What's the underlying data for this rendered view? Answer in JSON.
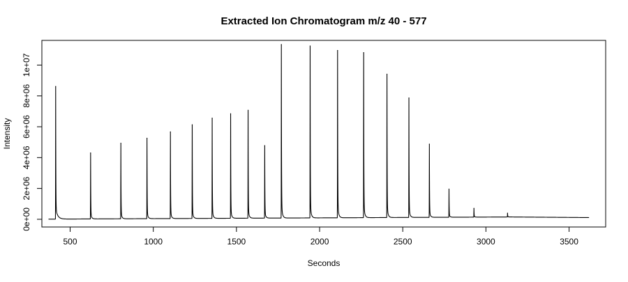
{
  "chart_data": {
    "type": "line",
    "title": "Extracted Ion Chromatogram  m/z  40 - 577",
    "xlabel": "Seconds",
    "ylabel": "Intensity",
    "xlim": [
      330,
      3720
    ],
    "ylim": [
      -500000,
      11600000
    ],
    "x_ticks": [
      {
        "value": 500,
        "label": "500"
      },
      {
        "value": 1000,
        "label": "1000"
      },
      {
        "value": 1500,
        "label": "1500"
      },
      {
        "value": 2000,
        "label": "2000"
      },
      {
        "value": 2500,
        "label": "2500"
      },
      {
        "value": 3000,
        "label": "3000"
      },
      {
        "value": 3500,
        "label": "3500"
      }
    ],
    "y_ticks": [
      {
        "value": 0,
        "label": "0e+00"
      },
      {
        "value": 2000000,
        "label": "2e+06"
      },
      {
        "value": 4000000,
        "label": "4e+06"
      },
      {
        "value": 6000000,
        "label": "6e+06"
      },
      {
        "value": 8000000,
        "label": "8e+06"
      },
      {
        "value": 10000000,
        "label": "1e+07"
      }
    ],
    "grid": false,
    "line_color": "#000000",
    "series": [
      {
        "baseline": [
          [
            370,
            10000
          ],
          [
            3150,
            150000
          ],
          [
            3620,
            110000
          ]
        ],
        "peaks": [
          {
            "x": 413,
            "y": 8600000
          },
          {
            "x": 623,
            "y": 4280000
          },
          {
            "x": 805,
            "y": 4900000
          },
          {
            "x": 962,
            "y": 5220000
          },
          {
            "x": 1103,
            "y": 5620000
          },
          {
            "x": 1234,
            "y": 6080000
          },
          {
            "x": 1354,
            "y": 6500000
          },
          {
            "x": 1465,
            "y": 6780000
          },
          {
            "x": 1570,
            "y": 7000000
          },
          {
            "x": 1670,
            "y": 4700000
          },
          {
            "x": 1770,
            "y": 11250000
          },
          {
            "x": 1943,
            "y": 11150000
          },
          {
            "x": 2108,
            "y": 10850000
          },
          {
            "x": 2265,
            "y": 10700000
          },
          {
            "x": 2405,
            "y": 9300000
          },
          {
            "x": 2537,
            "y": 7750000
          },
          {
            "x": 2660,
            "y": 4750000
          },
          {
            "x": 2778,
            "y": 1830000
          },
          {
            "x": 2928,
            "y": 570000
          },
          {
            "x": 3130,
            "y": 250000
          }
        ]
      }
    ]
  }
}
